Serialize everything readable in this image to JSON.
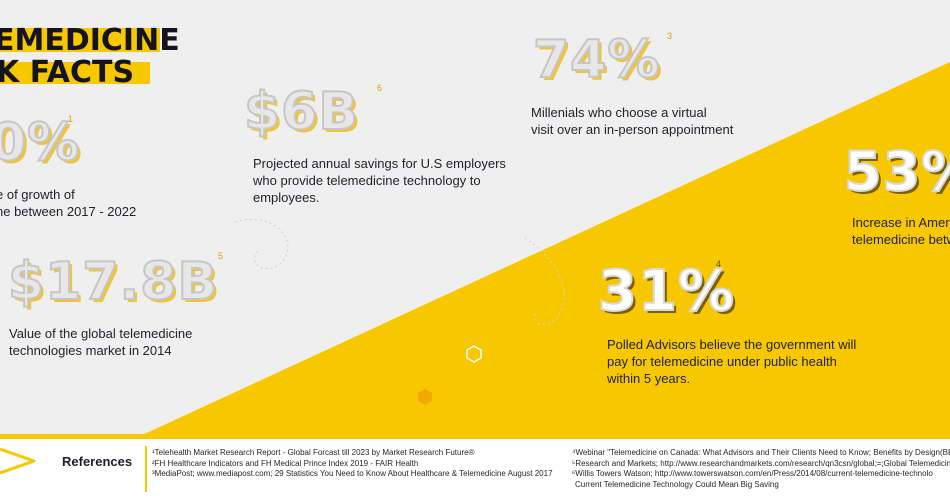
{
  "header": {
    "title_line1": "EMEDICINE",
    "title_line2": "K FACTS"
  },
  "colors": {
    "accent": "#f7c700",
    "background": "#efefef",
    "text": "#1e1e2a"
  },
  "facts": {
    "growth": {
      "value": "0%",
      "note": "1",
      "desc_line1": "e of growth of",
      "desc_line2": "ne between 2017 - 2022"
    },
    "savings": {
      "value": "$6B",
      "note": "6",
      "desc_line1": "Projected annual savings for U.S employers",
      "desc_line2": "who provide telemedicine technology to",
      "desc_line3": "employees."
    },
    "millennials": {
      "value": "74%",
      "note": "3",
      "desc_line1": "Millenials who choose a virtual",
      "desc_line2": "visit over an in-person appointment"
    },
    "increase": {
      "value": "53%",
      "desc_line1": "Increase in Amer",
      "desc_line2": "telemedicine betw"
    },
    "market": {
      "value": "$17.8B",
      "note": "5",
      "desc_line1": "Value of the global telemedicine",
      "desc_line2": "technologies market in 2014"
    },
    "advisors": {
      "value": "31%",
      "note": "4",
      "desc_line1": "Polled Advisors believe the government will",
      "desc_line2": "pay for telemedicine under public health",
      "desc_line3": "within 5 years."
    }
  },
  "references": {
    "label": "References",
    "left": [
      "¹Telehealth Market Research Report - Global Forcast till 2023 by Market Research Future®",
      "²FH Healthcare Indicators and FH Medical Prince Index 2019 - FAIR Health",
      "³MediaPost; www.mediapost.com; 29 Statistics You Need to Know About Healthcare & Telemedicine August 2017"
    ],
    "right": [
      "⁴Webinar \"Telemedicine on Canada: What Advisors and Their Clients Need to Know; Benefits by Design(BBD",
      "⁵Research and Markets; http://www.researchandmarkets.com/research/qn3csn/global;=;Global Telemedicine",
      "⁶Willis Towers Watson; http://www.towerswatson.com/en/Press/2014/08/current-telemedicine-technolo",
      "Current Telemedicine Technology Could Mean Big Saving"
    ]
  }
}
